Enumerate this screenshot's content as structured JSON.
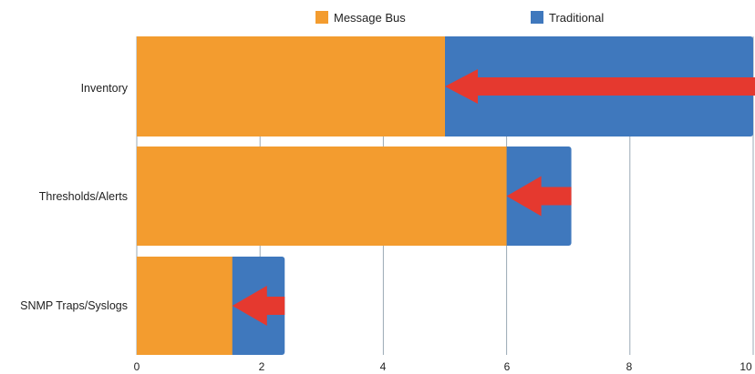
{
  "chart_data": {
    "type": "bar",
    "orientation": "horizontal",
    "categories": [
      "Inventory",
      "Thresholds/Alerts",
      "SNMP Traps/Syslogs"
    ],
    "series": [
      {
        "name": "Message Bus",
        "color": "#f39c2f",
        "values": [
          5.0,
          6.0,
          1.55
        ]
      },
      {
        "name": "Traditional",
        "color": "#3f78bd",
        "values": [
          10.0,
          7.05,
          2.4
        ]
      }
    ],
    "annotation": {
      "type": "arrow",
      "color": "#e5392f",
      "direction": "from Traditional to Message Bus"
    },
    "x_ticks": [
      "0",
      "2",
      "4",
      "6",
      "8",
      "10"
    ],
    "xlim": [
      0,
      10
    ],
    "grid": true,
    "legend_position": "top-center",
    "title": "",
    "xlabel": "",
    "ylabel": ""
  }
}
